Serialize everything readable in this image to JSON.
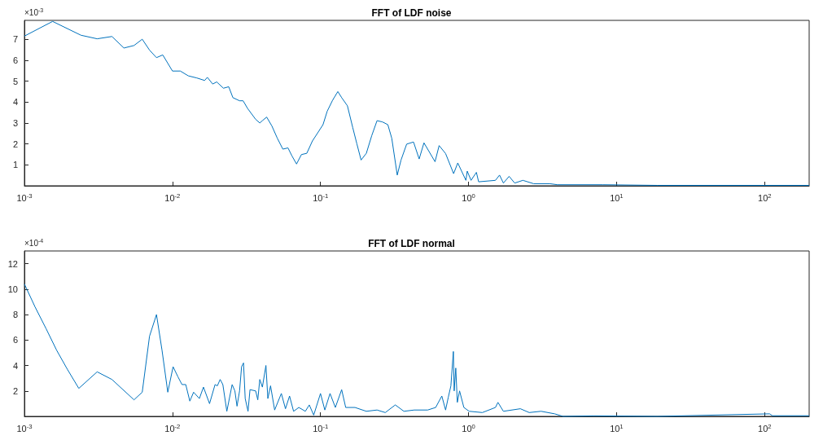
{
  "chart_data": [
    {
      "type": "line",
      "title": "FFT of LDF noise",
      "annotations": [
        "×10$^{-3}$"
      ],
      "log": "x",
      "xlim": [
        0.001,
        200
      ],
      "ylim": [
        0,
        7.9
      ],
      "xticks": [
        {
          "value": 0.001,
          "label": "10$^{-3}$"
        },
        {
          "value": 0.01,
          "label": "10$^{-2}$"
        },
        {
          "value": 0.1,
          "label": "10$^{-1}$"
        },
        {
          "value": 1,
          "label": "10$^{0}$"
        },
        {
          "value": 10,
          "label": "10$^{1}$"
        },
        {
          "value": 100,
          "label": "10$^{2}$"
        }
      ],
      "yticks": [
        1,
        2,
        3,
        4,
        5,
        6,
        7
      ],
      "series": [
        {
          "color": "#0072bd",
          "x": [
            0.001,
            0.00155,
            0.00241,
            0.0031,
            0.0039,
            0.0047,
            0.0055,
            0.00625,
            0.007,
            0.0078,
            0.0086,
            0.01,
            0.0113,
            0.0128,
            0.0146,
            0.0165,
            0.0172,
            0.0187,
            0.0199,
            0.0221,
            0.024,
            0.0256,
            0.0284,
            0.03,
            0.0322,
            0.0365,
            0.0389,
            0.0405,
            0.0433,
            0.047,
            0.0511,
            0.0557,
            0.0603,
            0.0641,
            0.0689,
            0.0743,
            0.0808,
            0.0882,
            0.0958,
            0.104,
            0.111,
            0.1206,
            0.131,
            0.139,
            0.152,
            0.165,
            0.176,
            0.188,
            0.204,
            0.222,
            0.241,
            0.262,
            0.285,
            0.303,
            0.33,
            0.35,
            0.382,
            0.425,
            0.464,
            0.5,
            0.594,
            0.633,
            0.7,
            0.793,
            0.846,
            0.96,
            0.98,
            1.04,
            1.13,
            1.17,
            1.52,
            1.62,
            1.72,
            1.88,
            2.05,
            2.33,
            2.75,
            3.53,
            3.99,
            8.1,
            18.9,
            200
          ],
          "values": [
            7.15,
            7.85,
            7.19,
            7.02,
            7.13,
            6.58,
            6.7,
            7.0,
            6.48,
            6.12,
            6.25,
            5.48,
            5.48,
            5.25,
            5.15,
            5.03,
            5.18,
            4.86,
            4.96,
            4.66,
            4.73,
            4.21,
            4.06,
            4.06,
            3.69,
            3.17,
            3.0,
            3.11,
            3.28,
            2.85,
            2.27,
            1.75,
            1.81,
            1.43,
            1.04,
            1.49,
            1.55,
            2.14,
            2.53,
            2.92,
            3.56,
            4.08,
            4.5,
            4.21,
            3.82,
            2.79,
            2.01,
            1.23,
            1.55,
            2.4,
            3.11,
            3.05,
            2.92,
            2.27,
            0.51,
            1.23,
            1.99,
            2.09,
            1.28,
            2.05,
            1.15,
            1.92,
            1.54,
            0.58,
            1.09,
            0.26,
            0.7,
            0.26,
            0.64,
            0.19,
            0.26,
            0.51,
            0.13,
            0.45,
            0.13,
            0.26,
            0.1,
            0.1,
            0.05,
            0.05,
            0.02,
            0.02
          ]
        }
      ]
    },
    {
      "type": "line",
      "title": "FFT of LDF normal",
      "annotations": [
        "×10$^{-4}$"
      ],
      "log": "x",
      "xlim": [
        0.001,
        200
      ],
      "ylim": [
        0,
        13
      ],
      "xticks": [
        {
          "value": 0.001,
          "label": "10$^{-3}$"
        },
        {
          "value": 0.01,
          "label": "10$^{-2}$"
        },
        {
          "value": 0.1,
          "label": "10$^{-1}$"
        },
        {
          "value": 1,
          "label": "10$^{0}$"
        },
        {
          "value": 10,
          "label": "10$^{1}$"
        },
        {
          "value": 100,
          "label": "10$^{2}$"
        }
      ],
      "yticks": [
        2,
        4,
        6,
        8,
        10,
        12
      ],
      "series": [
        {
          "color": "#0072bd",
          "x": [
            0.001,
            0.00118,
            0.0014,
            0.00165,
            0.00195,
            0.00233,
            0.0031,
            0.0039,
            0.0055,
            0.00625,
            0.007,
            0.0078,
            0.0085,
            0.0093,
            0.0101,
            0.0109,
            0.0116,
            0.0123,
            0.0131,
            0.0139,
            0.0152,
            0.0162,
            0.0178,
            0.0194,
            0.0201,
            0.021,
            0.0219,
            0.0233,
            0.0253,
            0.0264,
            0.0273,
            0.0284,
            0.0293,
            0.0302,
            0.031,
            0.0324,
            0.0334,
            0.0365,
            0.0377,
            0.0389,
            0.0405,
            0.0428,
            0.0441,
            0.046,
            0.049,
            0.0544,
            0.058,
            0.0618,
            0.0658,
            0.0714,
            0.079,
            0.084,
            0.09,
            0.1,
            0.107,
            0.116,
            0.126,
            0.139,
            0.148,
            0.171,
            0.204,
            0.241,
            0.274,
            0.32,
            0.366,
            0.43,
            0.53,
            0.6,
            0.66,
            0.7,
            0.73,
            0.76,
            0.79,
            0.8,
            0.82,
            0.84,
            0.87,
            0.93,
            1.01,
            1.24,
            1.52,
            1.58,
            1.72,
            2.24,
            2.57,
            3.09,
            3.82,
            4.35,
            7.05,
            18.9,
            108,
            113,
            200
          ],
          "values": [
            10.4,
            8.6,
            6.9,
            5.2,
            3.7,
            2.2,
            3.5,
            2.9,
            1.3,
            1.9,
            6.3,
            8.0,
            5.2,
            1.9,
            3.9,
            3.1,
            2.5,
            2.5,
            1.2,
            1.9,
            1.4,
            2.3,
            1.0,
            2.5,
            2.4,
            2.9,
            2.5,
            0.4,
            2.5,
            2.0,
            0.8,
            2.0,
            3.9,
            4.2,
            1.4,
            0.4,
            2.1,
            2.0,
            1.3,
            2.9,
            2.3,
            4.0,
            1.4,
            2.4,
            0.5,
            1.8,
            0.6,
            1.6,
            0.4,
            0.7,
            0.4,
            0.9,
            0.1,
            1.8,
            0.5,
            1.8,
            0.7,
            2.1,
            0.7,
            0.7,
            0.4,
            0.5,
            0.3,
            0.9,
            0.4,
            0.5,
            0.5,
            0.7,
            1.6,
            0.5,
            1.5,
            2.4,
            5.1,
            2.0,
            3.8,
            1.1,
            2.0,
            0.7,
            0.4,
            0.3,
            0.7,
            1.1,
            0.4,
            0.6,
            0.3,
            0.4,
            0.2,
            0,
            0.04,
            0,
            0.2,
            0.05,
            0.05
          ]
        }
      ]
    }
  ]
}
